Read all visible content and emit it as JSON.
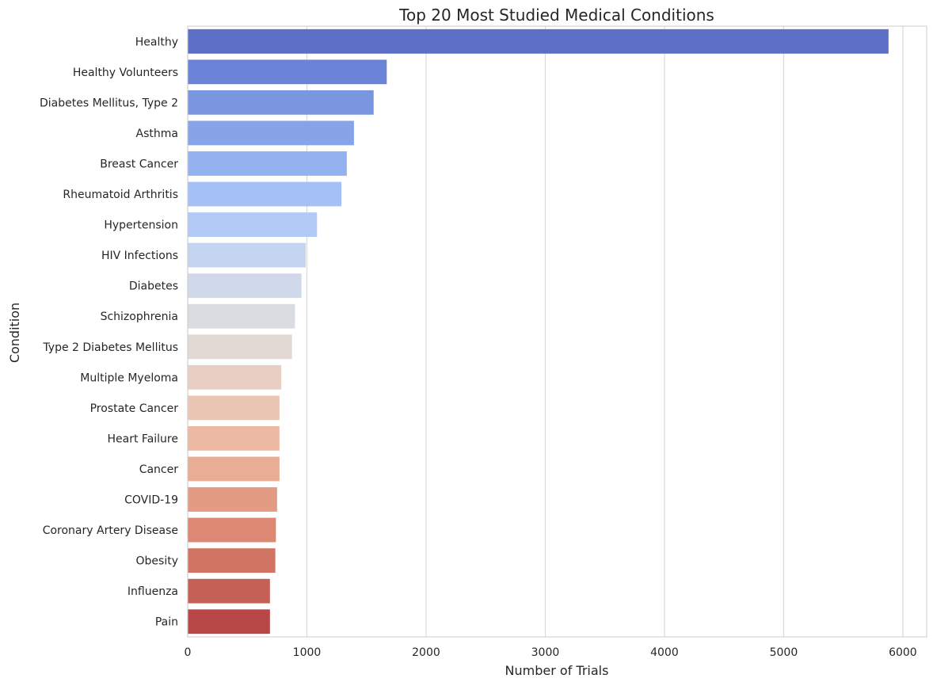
{
  "chart_data": {
    "type": "bar",
    "orientation": "horizontal",
    "title": "Top 20 Most Studied Medical Conditions",
    "xlabel": "Number of Trials",
    "ylabel": "Condition",
    "xlim": [
      0,
      6200
    ],
    "xticks": [
      0,
      1000,
      2000,
      3000,
      4000,
      5000,
      6000
    ],
    "grid": "vertical",
    "categories": [
      "Healthy",
      "Healthy Volunteers",
      "Diabetes Mellitus, Type 2",
      "Asthma",
      "Breast Cancer",
      "Rheumatoid Arthritis",
      "Hypertension",
      "HIV Infections",
      "Diabetes",
      "Schizophrenia",
      "Type 2 Diabetes Mellitus",
      "Multiple Myeloma",
      "Prostate Cancer",
      "Heart Failure",
      "Cancer",
      "COVID-19",
      "Coronary Artery Disease",
      "Obesity",
      "Influenza",
      "Pain"
    ],
    "values": [
      5880,
      1670,
      1560,
      1395,
      1335,
      1290,
      1085,
      990,
      955,
      900,
      875,
      785,
      770,
      770,
      770,
      750,
      740,
      735,
      690,
      690
    ],
    "colors": [
      "#5a6fc5",
      "#6a83d6",
      "#7a96e0",
      "#87a4e9",
      "#95b2f0",
      "#a4c0f5",
      "#b3c9f5",
      "#c2d4f0",
      "#cfd9ea",
      "#d9dce1",
      "#e3d9d3",
      "#e8cfc3",
      "#ecc6b4",
      "#ecbaa2",
      "#e9ad95",
      "#e39b84",
      "#dc8873",
      "#d27463",
      "#c56056",
      "#b84848"
    ]
  }
}
